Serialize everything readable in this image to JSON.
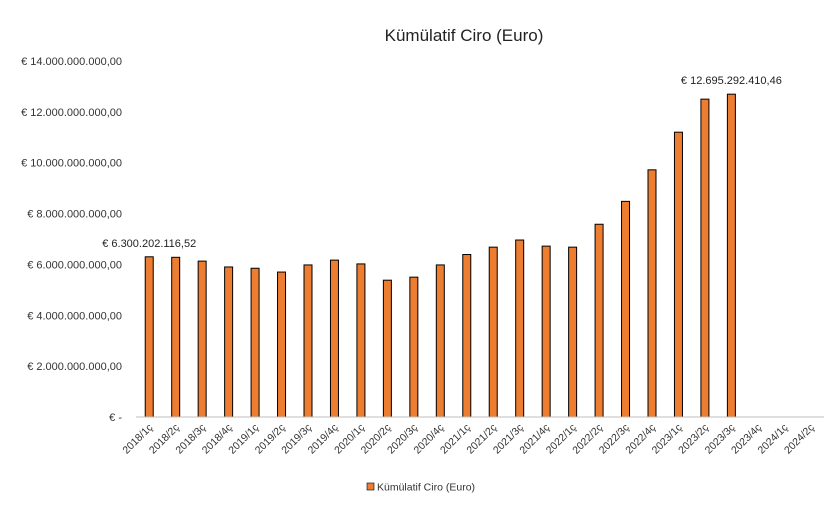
{
  "chart_data": {
    "type": "bar",
    "title": "Kümülatif Ciro (Euro)",
    "xlabel": "",
    "ylabel": "",
    "ylim": [
      0,
      14000000000
    ],
    "grid": false,
    "legend_position": "bottom",
    "colors": {
      "bar_fill": "#ed7d31",
      "bar_stroke": "#000000",
      "axis": "#bfbfbf"
    },
    "y_ticks": [
      {
        "value": 0,
        "label": "€ -"
      },
      {
        "value": 2000000000,
        "label": "€ 2.000.000.000,00"
      },
      {
        "value": 4000000000,
        "label": "€ 4.000.000.000,00"
      },
      {
        "value": 6000000000,
        "label": "€ 6.000.000.000,00"
      },
      {
        "value": 8000000000,
        "label": "€ 8.000.000.000,00"
      },
      {
        "value": 10000000000,
        "label": "€ 10.000.000.000,00"
      },
      {
        "value": 12000000000,
        "label": "€ 12.000.000.000,00"
      },
      {
        "value": 14000000000,
        "label": "€ 14.000.000.000,00"
      }
    ],
    "categories": [
      "2018/1ç",
      "2018/2ç",
      "2018/3ç",
      "2018/4ç",
      "2019/1ç",
      "2019/2ç",
      "2019/3ç",
      "2019/4ç",
      "2020/1ç",
      "2020/2ç",
      "2020/3ç",
      "2020/4ç",
      "2021/1ç",
      "2021/2ç",
      "2021/3ç",
      "2021/4ç",
      "2022/1ç",
      "2022/2ç",
      "2022/3ç",
      "2022/4ç",
      "2023/1ç",
      "2023/2ç",
      "2023/3ç",
      "2023/4ç",
      "2024/1ç",
      "2024/2ç"
    ],
    "series": [
      {
        "name": "Kümülatif Ciro (Euro)",
        "values": [
          6300202116.52,
          6280000000,
          6130000000,
          5900000000,
          5850000000,
          5700000000,
          5980000000,
          6170000000,
          6020000000,
          5380000000,
          5500000000,
          5980000000,
          6390000000,
          6680000000,
          6960000000,
          6720000000,
          6680000000,
          7580000000,
          8480000000,
          9720000000,
          11200000000,
          12500000000,
          12695292410.46,
          null,
          null,
          null
        ]
      }
    ],
    "data_labels": [
      {
        "index": 0,
        "text": "€ 6.300.202.116,52"
      },
      {
        "index": 22,
        "text": "€ 12.695.292.410,46"
      }
    ]
  }
}
